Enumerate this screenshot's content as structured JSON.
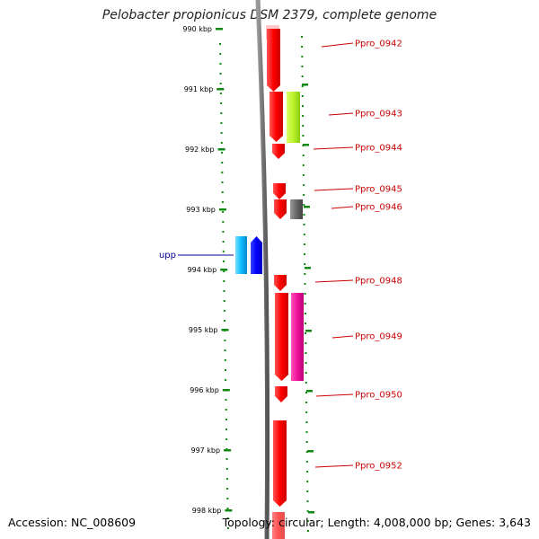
{
  "title": "Pelobacter propionicus DSM 2379, complete genome",
  "footer": {
    "accession": "Accession: NC_008609",
    "summary": "Topology: circular; Length: 4,008,000 bp; Genes: 3,643"
  },
  "axis_ticks": [
    "990 kbp",
    "991 kbp",
    "992 kbp",
    "993 kbp",
    "994 kbp",
    "995 kbp",
    "996 kbp",
    "997 kbp",
    "998 kbp"
  ],
  "colors": {
    "tick": "#118811",
    "gene_label_red": "#cc0000",
    "gene_label_blue": "#000099",
    "backbone": "#777777"
  },
  "genes_right": [
    {
      "label": "Ppro_0942",
      "color": "#ee1111",
      "lane": 1
    },
    {
      "label": "Ppro_0943",
      "color": "#aaee22",
      "lane": 2
    },
    {
      "label": "Ppro_0944",
      "color": "#ee1111",
      "lane": 1
    },
    {
      "label": "Ppro_0945",
      "color": "#ee1111",
      "lane": 1
    },
    {
      "label": "Ppro_0946",
      "color": "#666666",
      "lane": 2
    },
    {
      "label": "Ppro_0948",
      "color": "#ee1111",
      "lane": 1
    },
    {
      "label": "Ppro_0949",
      "color": "#ee1188",
      "lane": 2
    },
    {
      "label": "Ppro_0950",
      "color": "#ee1111",
      "lane": 1
    },
    {
      "label": "Ppro_0952",
      "color": "#ee1111",
      "lane": 1
    }
  ],
  "genes_left": [
    {
      "label": "upp",
      "color": "#00aaee"
    },
    {
      "label": "",
      "color": "#0000ee"
    }
  ]
}
